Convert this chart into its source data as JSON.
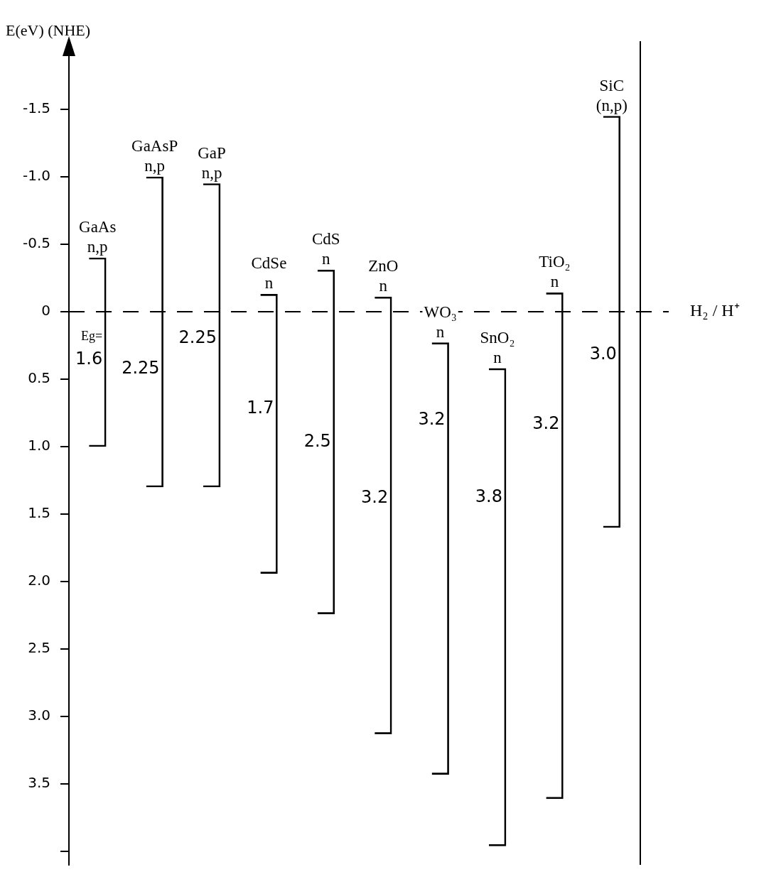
{
  "chart_data": {
    "type": "bar",
    "ylabel": "E(eV) (NHE)",
    "categories": [
      "GaAs n,p",
      "GaAsP n,p",
      "GaP n,p",
      "CdSe n",
      "CdS n",
      "ZnO n",
      "WO₃ n",
      "SnO₂ n",
      "TiO₂ n",
      "SiC (n,p)"
    ],
    "base": [
      -0.4,
      -1.0,
      -0.95,
      -0.13,
      -0.31,
      -0.11,
      0.23,
      0.42,
      -0.14,
      -1.45
    ],
    "values": [
      1.4,
      2.3,
      2.25,
      2.07,
      2.55,
      3.24,
      3.2,
      3.54,
      3.75,
      3.05
    ],
    "color": "#000000",
    "ylim": [
      4.1,
      -1.9
    ],
    "yticks": [
      {
        "value": -1.5,
        "label": "-1.5"
      },
      {
        "value": -1,
        "label": "-1.0"
      },
      {
        "value": -0.5,
        "label": "-0.5"
      },
      0,
      0.5,
      {
        "value": 1,
        "label": "1.0"
      },
      1.5,
      {
        "value": 2,
        "label": "2.0"
      },
      2.5,
      {
        "value": 3,
        "label": "3.0"
      },
      3.5,
      {
        "value": 4,
        "label": null
      }
    ],
    "ref_lines": [
      {
        "axis": "y",
        "value": 0,
        "label": "H₂ / H⁺",
        "line_style": "dashed"
      }
    ],
    "annotations": [
      "Eg=",
      "1.6",
      "2.25",
      "2.25",
      "1.7",
      "2.5",
      "3.2",
      "3.2",
      "3.8",
      "3.2",
      "3.0"
    ],
    "grid": false,
    "legend": false
  }
}
